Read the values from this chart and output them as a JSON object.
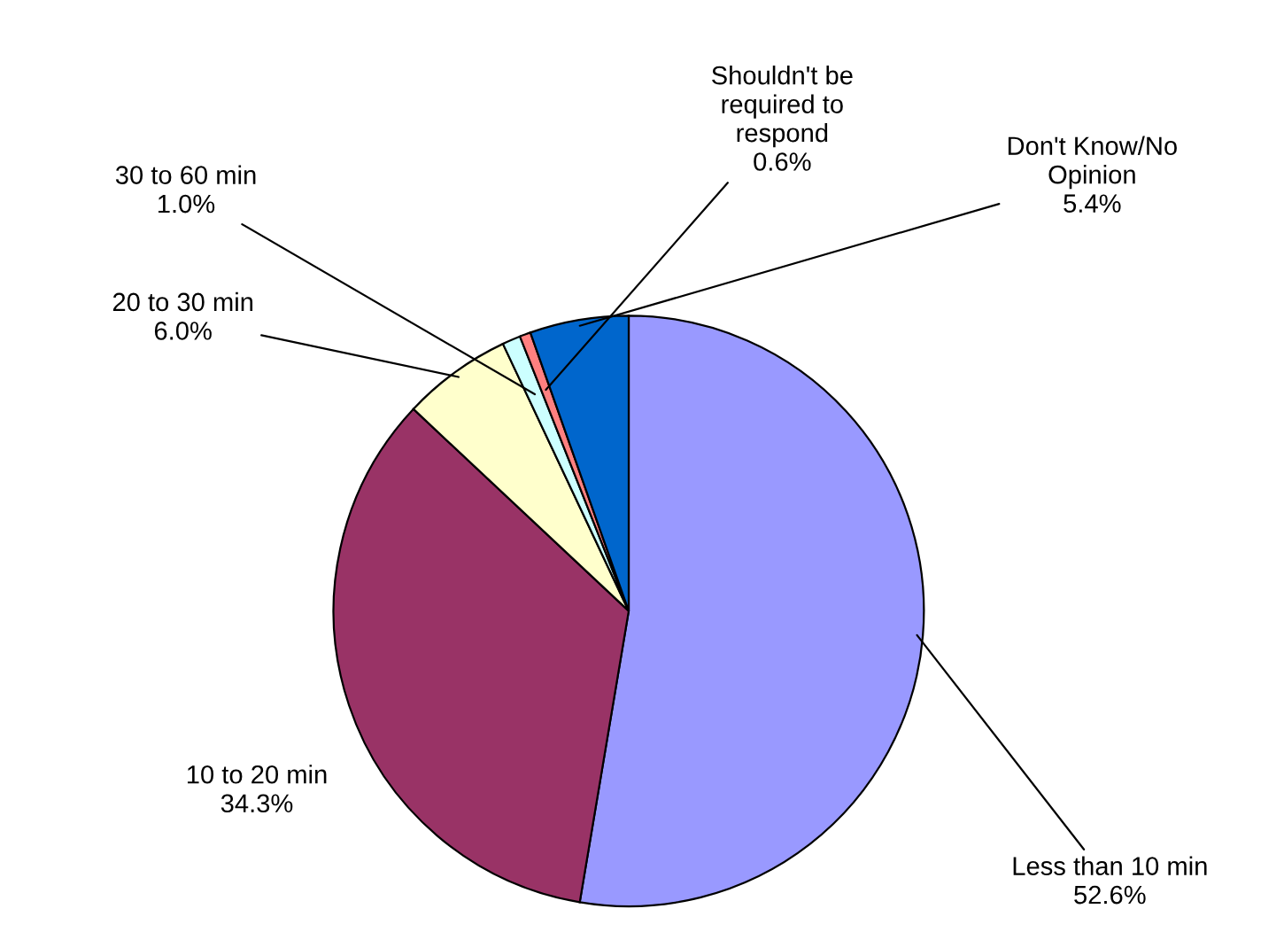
{
  "chart_data": {
    "type": "pie",
    "categories": [
      "Less than 10 min",
      "10 to 20 min",
      "20 to 30 min",
      "30 to 60 min",
      "Shouldn't be\nrequired to\nrespond",
      "Don't Know/No\nOpinion"
    ],
    "values": [
      52.6,
      34.3,
      6.0,
      1.0,
      0.6,
      5.4
    ],
    "colors": [
      "#9999ff",
      "#993366",
      "#ffffcc",
      "#ccffff",
      "#ff8080",
      "#0066cc"
    ],
    "value_labels": [
      "52.6%",
      "34.3%",
      "6.0%",
      "1.0%",
      "0.6%",
      "5.4%"
    ],
    "legend": false
  }
}
